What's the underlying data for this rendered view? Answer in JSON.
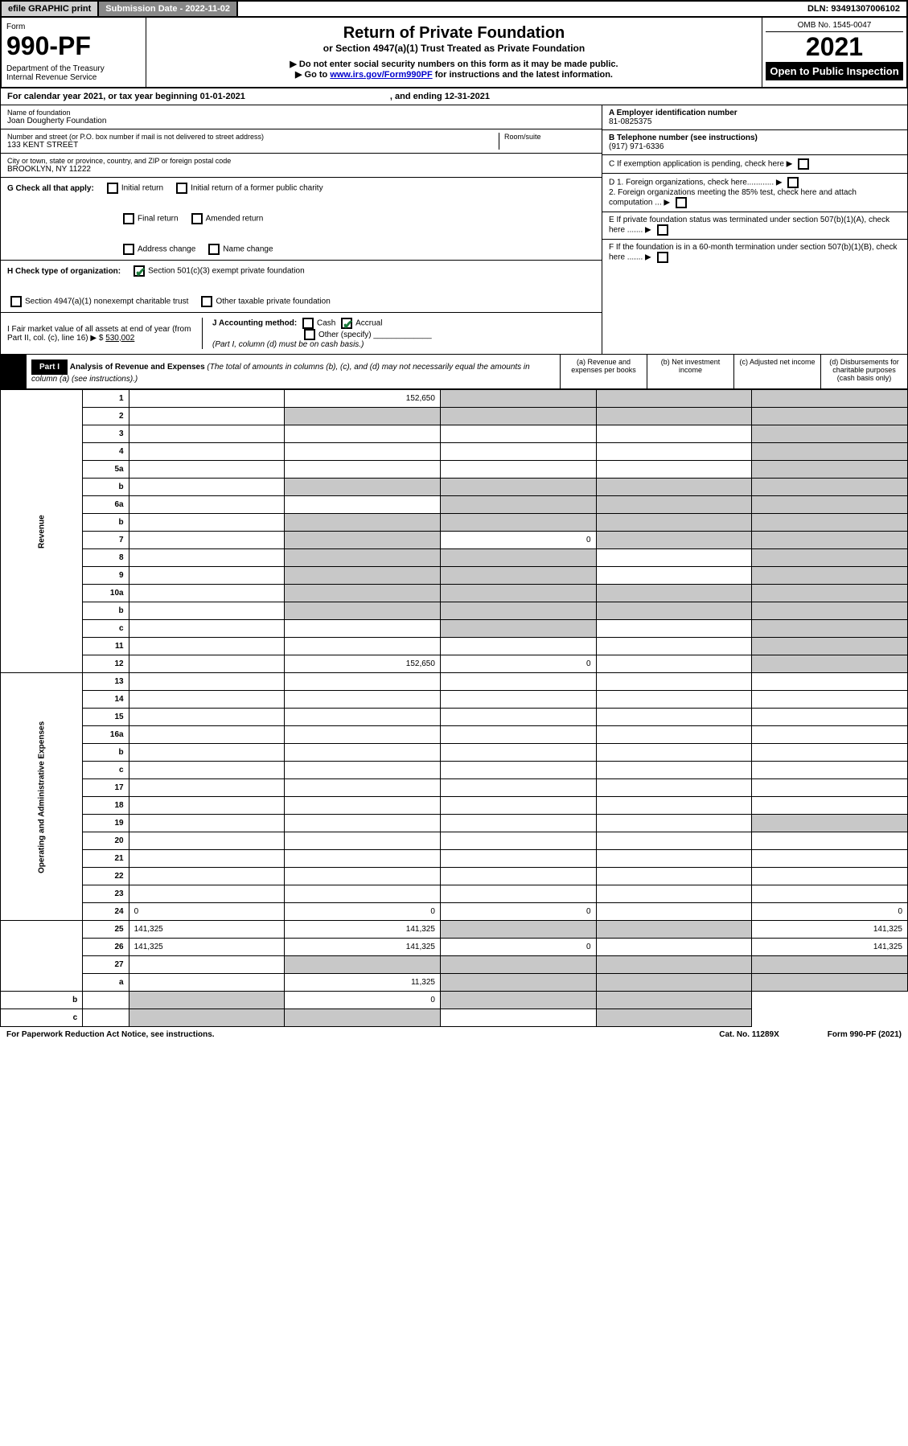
{
  "topbar": {
    "efile": "efile GRAPHIC print",
    "subdate_label": "Submission Date - 2022-11-02",
    "dln": "DLN: 93491307006102"
  },
  "header": {
    "form": "Form",
    "formnum": "990-PF",
    "dept": "Department of the Treasury\nInternal Revenue Service",
    "title": "Return of Private Foundation",
    "sub1": "or Section 4947(a)(1) Trust Treated as Private Foundation",
    "sub2a": "▶ Do not enter social security numbers on this form as it may be made public.",
    "sub2b": "▶ Go to www.irs.gov/Form990PF for instructions and the latest information.",
    "omb": "OMB No. 1545-0047",
    "year": "2021",
    "inspect": "Open to Public Inspection"
  },
  "cal": {
    "text1": "For calendar year 2021, or tax year beginning 01-01-2021",
    "text2": ", and ending 12-31-2021"
  },
  "info": {
    "name_label": "Name of foundation",
    "name": "Joan Dougherty Foundation",
    "addr_label": "Number and street (or P.O. box number if mail is not delivered to street address)",
    "addr": "133 KENT STREET",
    "room_label": "Room/suite",
    "city_label": "City or town, state or province, country, and ZIP or foreign postal code",
    "city": "BROOKLYN, NY  11222",
    "a_label": "A Employer identification number",
    "a_val": "81-0825375",
    "b_label": "B Telephone number (see instructions)",
    "b_val": "(917) 971-6336",
    "c_label": "C If exemption application is pending, check here",
    "d1": "D 1. Foreign organizations, check here............",
    "d2": "2. Foreign organizations meeting the 85% test, check here and attach computation ...",
    "e": "E  If private foundation status was terminated under section 507(b)(1)(A), check here .......",
    "f": "F  If the foundation is in a 60-month termination under section 507(b)(1)(B), check here .......",
    "g_label": "G Check all that apply:",
    "g_opts": [
      "Initial return",
      "Initial return of a former public charity",
      "Final return",
      "Amended return",
      "Address change",
      "Name change"
    ],
    "h_label": "H Check type of organization:",
    "h_opt1": "Section 501(c)(3) exempt private foundation",
    "h_opt2": "Section 4947(a)(1) nonexempt charitable trust",
    "h_opt3": "Other taxable private foundation",
    "i_label": "I Fair market value of all assets at end of year (from Part II, col. (c), line 16)",
    "i_val": "530,002",
    "j_label": "J Accounting method:",
    "j_cash": "Cash",
    "j_accrual": "Accrual",
    "j_other": "Other (specify)",
    "j_note": "(Part I, column (d) must be on cash basis.)"
  },
  "part1": {
    "label": "Part I",
    "title": "Analysis of Revenue and Expenses",
    "note": "(The total of amounts in columns (b), (c), and (d) may not necessarily equal the amounts in column (a) (see instructions).)",
    "col_a": "(a)   Revenue and expenses per books",
    "col_b": "(b)   Net investment income",
    "col_c": "(c)   Adjusted net income",
    "col_d": "(d)   Disbursements for charitable purposes (cash basis only)"
  },
  "revenue_label": "Revenue",
  "expense_label": "Operating and Administrative Expenses",
  "rows": [
    {
      "n": "1",
      "d": "",
      "a": "152,650",
      "b": "",
      "c": "",
      "sb": true,
      "sc": true,
      "sd": true
    },
    {
      "n": "2",
      "d": "",
      "a": "",
      "b": "",
      "c": "",
      "sa": true,
      "sb": true,
      "sc": true,
      "sd": true
    },
    {
      "n": "3",
      "d": "",
      "a": "",
      "b": "",
      "c": "",
      "sd": true
    },
    {
      "n": "4",
      "d": "",
      "a": "",
      "b": "",
      "c": "",
      "sd": true
    },
    {
      "n": "5a",
      "d": "",
      "a": "",
      "b": "",
      "c": "",
      "sd": true
    },
    {
      "n": "b",
      "d": "",
      "a": "",
      "b": "",
      "c": "",
      "sa": true,
      "sb": true,
      "sc": true,
      "sd": true
    },
    {
      "n": "6a",
      "d": "",
      "a": "",
      "b": "",
      "c": "",
      "sb": true,
      "sc": true,
      "sd": true
    },
    {
      "n": "b",
      "d": "",
      "a": "",
      "b": "",
      "c": "",
      "sa": true,
      "sb": true,
      "sc": true,
      "sd": true
    },
    {
      "n": "7",
      "d": "",
      "a": "",
      "b": "0",
      "c": "",
      "sa": true,
      "sc": true,
      "sd": true
    },
    {
      "n": "8",
      "d": "",
      "a": "",
      "b": "",
      "c": "",
      "sa": true,
      "sb": true,
      "sd": true
    },
    {
      "n": "9",
      "d": "",
      "a": "",
      "b": "",
      "c": "",
      "sa": true,
      "sb": true,
      "sd": true
    },
    {
      "n": "10a",
      "d": "",
      "a": "",
      "b": "",
      "c": "",
      "sa": true,
      "sb": true,
      "sc": true,
      "sd": true
    },
    {
      "n": "b",
      "d": "",
      "a": "",
      "b": "",
      "c": "",
      "sa": true,
      "sb": true,
      "sc": true,
      "sd": true
    },
    {
      "n": "c",
      "d": "",
      "a": "",
      "b": "",
      "c": "",
      "sb": true,
      "sd": true
    },
    {
      "n": "11",
      "d": "",
      "a": "",
      "b": "",
      "c": "",
      "sd": true
    },
    {
      "n": "12",
      "d": "",
      "a": "152,650",
      "b": "0",
      "c": "",
      "sd": true
    },
    {
      "n": "13",
      "d": "",
      "a": "",
      "b": "",
      "c": ""
    },
    {
      "n": "14",
      "d": "",
      "a": "",
      "b": "",
      "c": ""
    },
    {
      "n": "15",
      "d": "",
      "a": "",
      "b": "",
      "c": ""
    },
    {
      "n": "16a",
      "d": "",
      "a": "",
      "b": "",
      "c": ""
    },
    {
      "n": "b",
      "d": "",
      "a": "",
      "b": "",
      "c": ""
    },
    {
      "n": "c",
      "d": "",
      "a": "",
      "b": "",
      "c": ""
    },
    {
      "n": "17",
      "d": "",
      "a": "",
      "b": "",
      "c": ""
    },
    {
      "n": "18",
      "d": "",
      "a": "",
      "b": "",
      "c": ""
    },
    {
      "n": "19",
      "d": "",
      "a": "",
      "b": "",
      "c": "",
      "sd": true
    },
    {
      "n": "20",
      "d": "",
      "a": "",
      "b": "",
      "c": ""
    },
    {
      "n": "21",
      "d": "",
      "a": "",
      "b": "",
      "c": ""
    },
    {
      "n": "22",
      "d": "",
      "a": "",
      "b": "",
      "c": ""
    },
    {
      "n": "23",
      "d": "",
      "a": "",
      "b": "",
      "c": ""
    },
    {
      "n": "24",
      "d": "0",
      "a": "0",
      "b": "0",
      "c": ""
    },
    {
      "n": "25",
      "d": "141,325",
      "a": "141,325",
      "b": "",
      "c": "",
      "sb": true,
      "sc": true
    },
    {
      "n": "26",
      "d": "141,325",
      "a": "141,325",
      "b": "0",
      "c": ""
    },
    {
      "n": "27",
      "d": "",
      "a": "",
      "b": "",
      "c": "",
      "sa": true,
      "sb": true,
      "sc": true,
      "sd": true
    },
    {
      "n": "a",
      "d": "",
      "a": "11,325",
      "b": "",
      "c": "",
      "sb": true,
      "sc": true,
      "sd": true
    },
    {
      "n": "b",
      "d": "",
      "a": "",
      "b": "0",
      "c": "",
      "sa": true,
      "sc": true,
      "sd": true
    },
    {
      "n": "c",
      "d": "",
      "a": "",
      "b": "",
      "c": "",
      "sa": true,
      "sb": true,
      "sd": true
    }
  ],
  "footer": {
    "left": "For Paperwork Reduction Act Notice, see instructions.",
    "mid": "Cat. No. 11289X",
    "right": "Form 990-PF (2021)"
  }
}
